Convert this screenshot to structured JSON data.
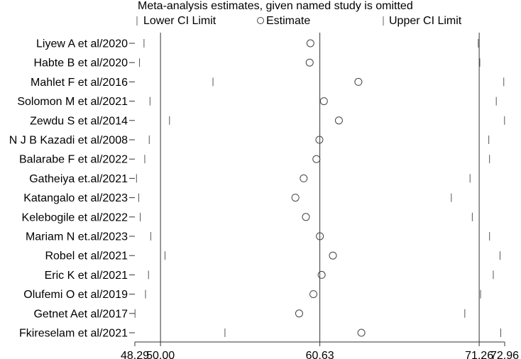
{
  "chart_data": {
    "type": "scatter",
    "title": "Meta-analysis estimates, given named study is omitted",
    "legend": {
      "placement": "top",
      "entries": [
        {
          "symbol": "|",
          "label": "Lower CI Limit"
        },
        {
          "symbol": "○",
          "label": "Estimate"
        },
        {
          "symbol": "|",
          "label": "Upper CI Limit"
        }
      ]
    },
    "xlim": [
      48.29,
      72.96
    ],
    "xticks": [
      {
        "value": 48.29,
        "label": "48.29"
      },
      {
        "value": 50.0,
        "label": "50.00"
      },
      {
        "value": 60.63,
        "label": "60.63"
      },
      {
        "value": 71.26,
        "label": "71.26"
      },
      {
        "value": 72.96,
        "label": "72.96"
      }
    ],
    "reference_lines": [
      50.0,
      60.63,
      71.26
    ],
    "studies": [
      {
        "name": "Liyew A et al/2020",
        "lower": 48.9,
        "estimate": 60.0,
        "upper": 71.2
      },
      {
        "name": "Habte B et al/2020",
        "lower": 48.6,
        "estimate": 59.95,
        "upper": 71.3
      },
      {
        "name": "Mahlet F et al/2016",
        "lower": 53.5,
        "estimate": 63.2,
        "upper": 72.9
      },
      {
        "name": "Solomon M et al/2021",
        "lower": 49.3,
        "estimate": 60.9,
        "upper": 72.4
      },
      {
        "name": "Zewdu S et al/2014",
        "lower": 50.6,
        "estimate": 61.9,
        "upper": 72.95
      },
      {
        "name": "N J B Kazadi et al/2008",
        "lower": 49.25,
        "estimate": 60.6,
        "upper": 71.9
      },
      {
        "name": "Balarabe F et al/2022",
        "lower": 48.95,
        "estimate": 60.4,
        "upper": 71.95
      },
      {
        "name": "Gatheiya et.al/2021",
        "lower": 48.4,
        "estimate": 59.55,
        "upper": 70.65
      },
      {
        "name": "Katangalo et al/2023",
        "lower": 48.55,
        "estimate": 59.0,
        "upper": 69.4
      },
      {
        "name": "Kelebogile et al/2022",
        "lower": 48.65,
        "estimate": 59.7,
        "upper": 70.8
      },
      {
        "name": "Mariam N et.al/2023",
        "lower": 49.35,
        "estimate": 60.63,
        "upper": 71.95
      },
      {
        "name": "Robel et al/2021",
        "lower": 50.3,
        "estimate": 61.5,
        "upper": 72.65
      },
      {
        "name": "Eric K et al/2021",
        "lower": 49.2,
        "estimate": 60.75,
        "upper": 72.2
      },
      {
        "name": "Olufemi O et al/2019",
        "lower": 49.0,
        "estimate": 60.2,
        "upper": 71.35
      },
      {
        "name": "Getnet Aet al/2017",
        "lower": 48.3,
        "estimate": 59.25,
        "upper": 70.3
      },
      {
        "name": "Fkireselam et al/2021",
        "lower": 54.3,
        "estimate": 63.4,
        "upper": 72.7
      }
    ]
  }
}
